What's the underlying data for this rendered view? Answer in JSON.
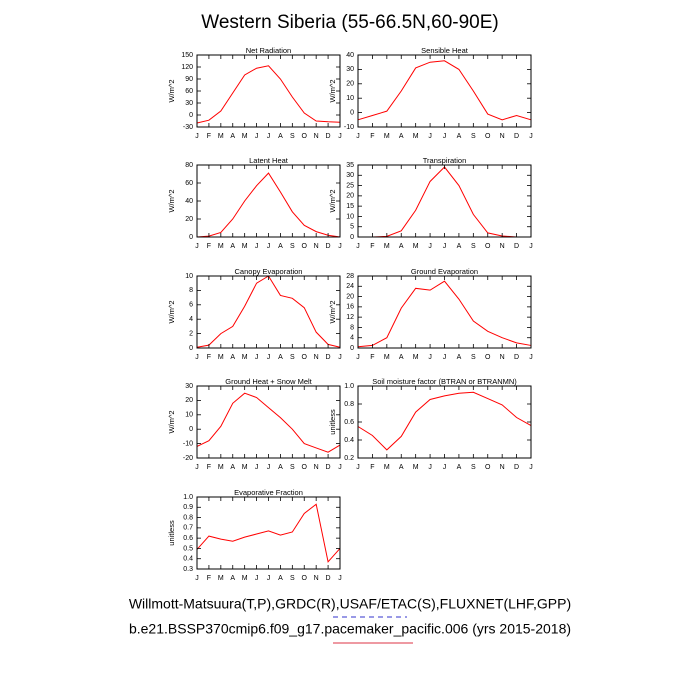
{
  "title": "Western Siberia (55-66.5N,60-90E)",
  "footer": [
    "Willmott-Matsuura(T,P),GRDC(R),USAF/ETAC(S),FLUXNET(LHF,GPP)",
    "b.e21.BSSP370cmip6.f09_g17.pacemaker_pacific.006 (yrs 2015-2018)"
  ],
  "chart_data": [
    {
      "type": "line",
      "title": "Net Radiation",
      "y_label": "W/m^2",
      "color": "#ff0000",
      "categories": [
        "J",
        "F",
        "M",
        "A",
        "M",
        "J",
        "J",
        "A",
        "S",
        "O",
        "N",
        "D",
        "J"
      ],
      "values": [
        -20,
        -13,
        10,
        55,
        100,
        117,
        123,
        90,
        45,
        5,
        -15,
        -17,
        -18
      ],
      "ylim": [
        -30,
        150
      ],
      "yticks": [
        -30,
        0,
        30,
        60,
        90,
        120,
        150
      ]
    },
    {
      "type": "line",
      "title": "Sensible Heat",
      "y_label": "W/m^2",
      "color": "#ff0000",
      "categories": [
        "J",
        "F",
        "M",
        "A",
        "M",
        "J",
        "J",
        "A",
        "S",
        "O",
        "N",
        "D",
        "J"
      ],
      "values": [
        -5,
        -2,
        1,
        15,
        31,
        35,
        36,
        30,
        15,
        -1,
        -5,
        -2,
        -5
      ],
      "ylim": [
        -10,
        40
      ],
      "yticks": [
        -10,
        0,
        10,
        20,
        30,
        40
      ]
    },
    {
      "type": "line",
      "title": "Latent Heat",
      "y_label": "W/m^2",
      "color": "#ff0000",
      "categories": [
        "J",
        "F",
        "M",
        "A",
        "M",
        "J",
        "J",
        "A",
        "S",
        "O",
        "N",
        "D",
        "J"
      ],
      "values": [
        0,
        1,
        5,
        20,
        40,
        57,
        71,
        50,
        28,
        13,
        6,
        2,
        0
      ],
      "ylim": [
        0,
        80
      ],
      "yticks": [
        0,
        20,
        40,
        60,
        80
      ]
    },
    {
      "type": "line",
      "title": "Transpiration",
      "y_label": "W/m^2",
      "color": "#ff0000",
      "categories": [
        "J",
        "F",
        "M",
        "A",
        "M",
        "J",
        "J",
        "A",
        "S",
        "O",
        "N",
        "D",
        "J"
      ],
      "values": [
        0,
        0,
        0.3,
        3,
        13,
        27,
        34,
        25,
        11,
        2,
        0.5,
        0,
        0
      ],
      "ylim": [
        0,
        35
      ],
      "yticks": [
        0,
        5,
        10,
        15,
        20,
        25,
        30,
        35
      ]
    },
    {
      "type": "line",
      "title": "Canopy Evaporation",
      "y_label": "W/m^2",
      "color": "#ff0000",
      "categories": [
        "J",
        "F",
        "M",
        "A",
        "M",
        "J",
        "J",
        "A",
        "S",
        "O",
        "N",
        "D",
        "J"
      ],
      "values": [
        0.1,
        0.4,
        2,
        3,
        5.8,
        9,
        10,
        7.3,
        6.9,
        5.6,
        2.2,
        0.5,
        0.1
      ],
      "ylim": [
        0,
        10
      ],
      "yticks": [
        0,
        2,
        4,
        6,
        8,
        10
      ]
    },
    {
      "type": "line",
      "title": "Ground Evaporation",
      "y_label": "W/m^2",
      "color": "#ff0000",
      "categories": [
        "J",
        "F",
        "M",
        "A",
        "M",
        "J",
        "J",
        "A",
        "S",
        "O",
        "N",
        "D",
        "J"
      ],
      "values": [
        0.5,
        1,
        4,
        15.5,
        23.2,
        22.5,
        26,
        19,
        10.5,
        6.5,
        4,
        2,
        1
      ],
      "ylim": [
        0,
        28
      ],
      "yticks": [
        0,
        4,
        8,
        12,
        16,
        20,
        24,
        28
      ]
    },
    {
      "type": "line",
      "title": "Ground Heat + Snow Melt",
      "y_label": "W/m^2",
      "color": "#ff0000",
      "categories": [
        "J",
        "F",
        "M",
        "A",
        "M",
        "J",
        "J",
        "A",
        "S",
        "O",
        "N",
        "D",
        "J"
      ],
      "values": [
        -12,
        -8,
        2,
        18,
        25,
        22,
        15,
        8,
        0,
        -10,
        -13,
        -16,
        -11
      ],
      "ylim": [
        -20,
        30
      ],
      "yticks": [
        -20,
        -10,
        0,
        10,
        20,
        30
      ]
    },
    {
      "type": "line",
      "title": "Soil moisture factor (BTRAN or BTRANMN)",
      "y_label": "unitless",
      "color": "#ff0000",
      "categories": [
        "J",
        "F",
        "M",
        "A",
        "M",
        "J",
        "J",
        "A",
        "S",
        "O",
        "N",
        "D",
        "J"
      ],
      "values": [
        0.55,
        0.45,
        0.29,
        0.44,
        0.71,
        0.85,
        0.89,
        0.92,
        0.93,
        0.86,
        0.79,
        0.65,
        0.56
      ],
      "ylim": [
        0.2,
        1.0
      ],
      "yticks": [
        0.2,
        0.4,
        0.6,
        0.8,
        {
          "value": 1,
          "label": "1.0"
        }
      ]
    },
    {
      "type": "line",
      "title": "Evaporative Fraction",
      "y_label": "unitless",
      "color": "#ff0000",
      "categories": [
        "J",
        "F",
        "M",
        "A",
        "M",
        "J",
        "J",
        "A",
        "S",
        "O",
        "N",
        "D",
        "J"
      ],
      "values": [
        0.49,
        0.62,
        0.59,
        0.57,
        0.61,
        0.64,
        0.67,
        0.63,
        0.66,
        0.84,
        0.93,
        0.37,
        0.5
      ],
      "ylim": [
        0.3,
        1.0
      ],
      "yticks": [
        0.3,
        0.4,
        0.5,
        0.6,
        0.7,
        0.8,
        0.9,
        {
          "value": 1,
          "label": "1.0"
        }
      ]
    }
  ]
}
